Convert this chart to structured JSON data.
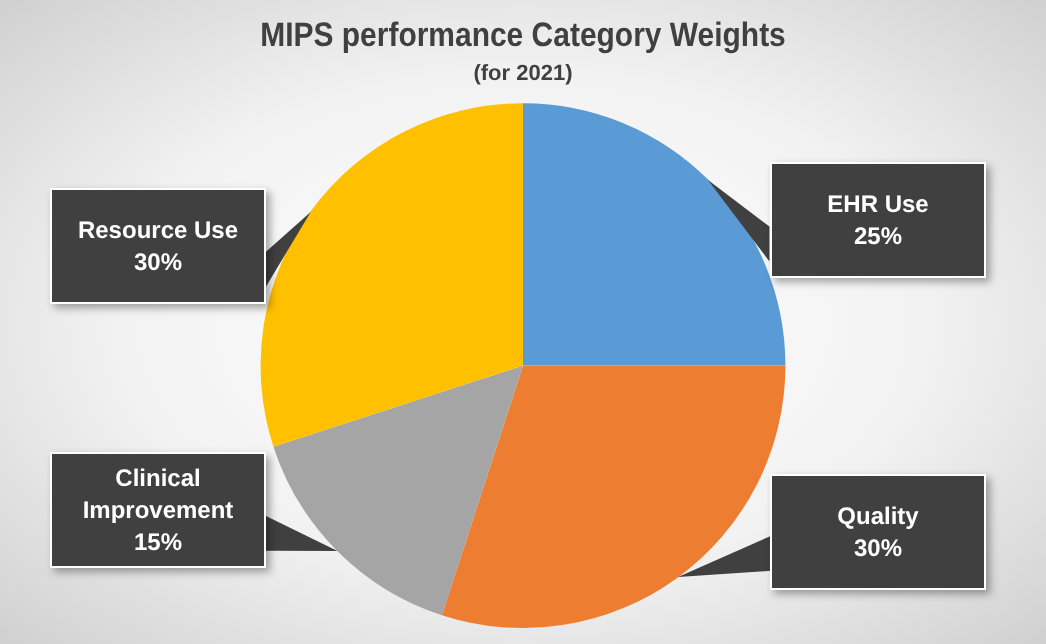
{
  "chart_data": {
    "type": "pie",
    "title": "MIPS performance Category Weights",
    "subtitle": "(for 2021)",
    "categories": [
      "EHR Use",
      "Quality",
      "Clinical Improvement",
      "Resource Use"
    ],
    "values": [
      25,
      30,
      15,
      30
    ],
    "value_labels": [
      "25%",
      "30%",
      "15%",
      "30%"
    ],
    "colors": [
      "#5b9bd5",
      "#ed7d31",
      "#a5a5a5",
      "#ffc000"
    ],
    "legend": false
  }
}
